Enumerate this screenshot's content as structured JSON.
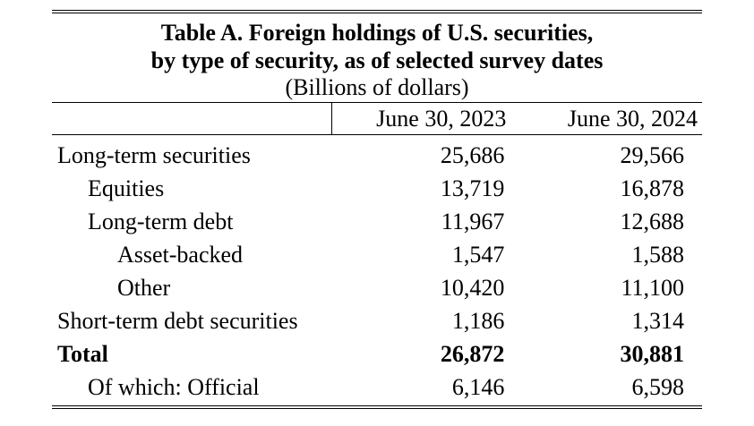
{
  "title": {
    "line1": "Table A.  Foreign holdings of U.S. securities,",
    "line2": "by type of security, as of selected survey dates",
    "units": "(Billions of dollars)"
  },
  "columns": [
    "June 30, 2023",
    "June 30, 2024"
  ],
  "rows": [
    {
      "label": "Long-term securities",
      "v2023": "25,686",
      "v2024": "29,566"
    },
    {
      "label": "Equities",
      "v2023": "13,719",
      "v2024": "16,878"
    },
    {
      "label": "Long-term debt",
      "v2023": "11,967",
      "v2024": "12,688"
    },
    {
      "label": "Asset-backed",
      "v2023": "1,547",
      "v2024": "1,588"
    },
    {
      "label": "Other",
      "v2023": "10,420",
      "v2024": "11,100"
    },
    {
      "label": "Short-term debt securities",
      "v2023": "1,186",
      "v2024": "1,314"
    },
    {
      "label": "Total",
      "v2023": "26,872",
      "v2024": "30,881"
    },
    {
      "label": "Of which: Official",
      "v2023": "6,146",
      "v2024": "6,598"
    }
  ]
}
